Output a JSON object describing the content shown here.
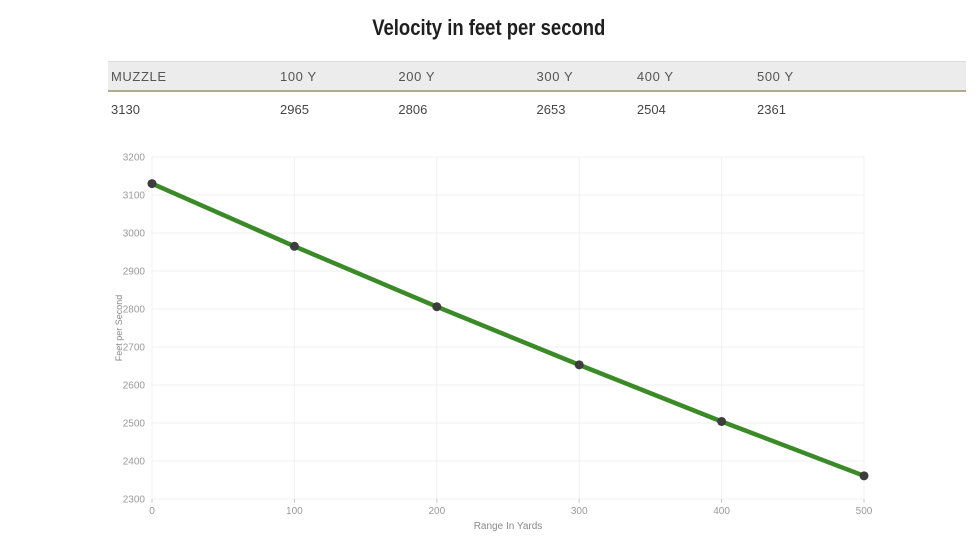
{
  "header": {
    "title": "Velocity in feet per second"
  },
  "table": {
    "headers": [
      "MUZZLE",
      "100 Y",
      "200 Y",
      "300 Y",
      "400 Y",
      "500 Y"
    ],
    "values": [
      "3130",
      "2965",
      "2806",
      "2653",
      "2504",
      "2361"
    ]
  },
  "chart_data": {
    "type": "line",
    "title": "Velocity in feet per second",
    "x": [
      0,
      100,
      200,
      300,
      400,
      500
    ],
    "series": [
      {
        "name": "Velocity",
        "values": [
          3130,
          2965,
          2806,
          2653,
          2504,
          2361
        ]
      }
    ],
    "xlabel": "Range In Yards",
    "ylabel": "Feet per Second",
    "xlim": [
      0,
      500
    ],
    "ylim": [
      2300,
      3200
    ],
    "x_ticks": [
      0,
      100,
      200,
      300,
      400,
      500
    ],
    "y_ticks": [
      2300,
      2400,
      2500,
      2600,
      2700,
      2800,
      2900,
      3000,
      3100,
      3200
    ],
    "grid": true,
    "legend": false
  },
  "colors": {
    "line": "#3a8a28",
    "marker": "#3d3d3d",
    "grid": "#f0f0f0",
    "tick": "#cccccc",
    "axis_text": "#9a9a9a",
    "axis_title": "#8a8a8a",
    "table_header_bg": "#ececec",
    "table_header_border": "#b3ab91"
  }
}
